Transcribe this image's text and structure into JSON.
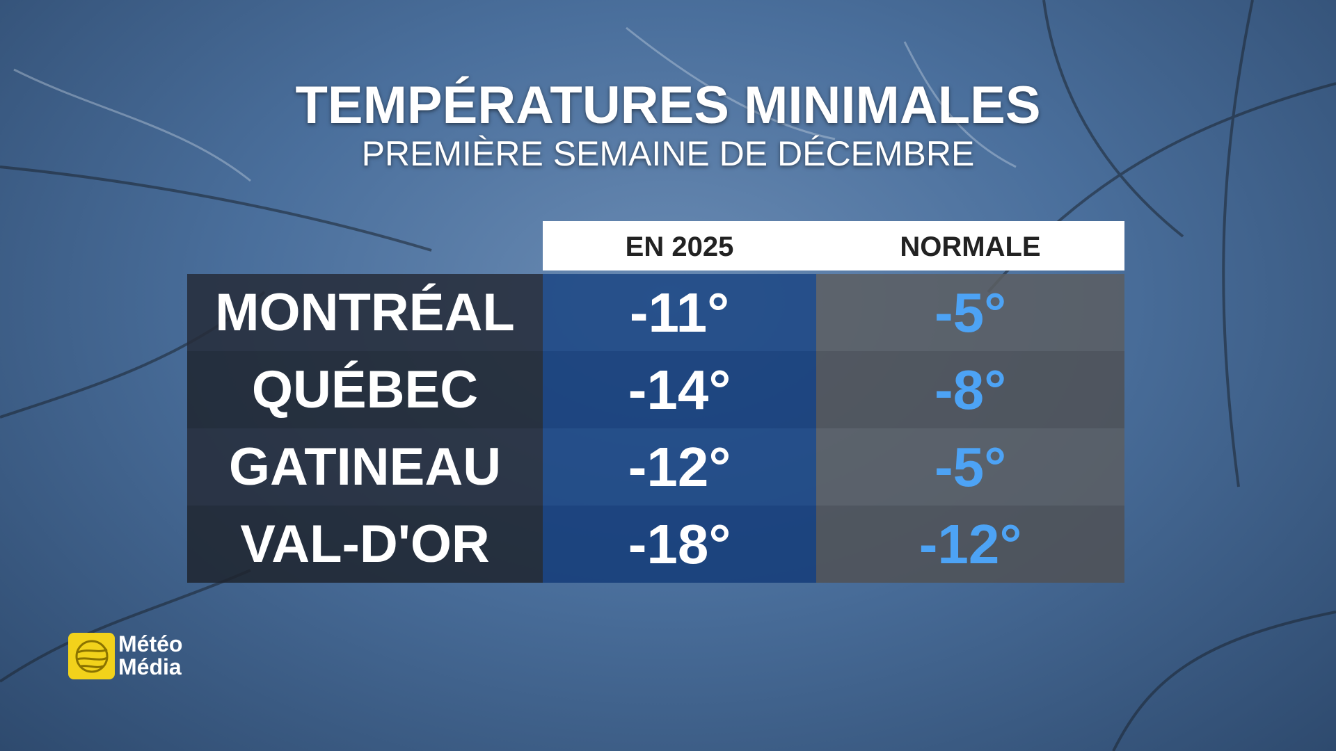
{
  "header": {
    "title": "TEMPÉRATURES MINIMALES",
    "subtitle": "PREMIÈRE SEMAINE DE DÉCEMBRE"
  },
  "table": {
    "columns": [
      "EN 2025",
      "NORMALE"
    ],
    "rows": [
      [
        "MONTRÉAL",
        "-11°",
        "-5°"
      ],
      [
        "QUÉBEC",
        "-14°",
        "-8°"
      ],
      [
        "GATINEAU",
        "-12°",
        "-5°"
      ],
      [
        "VAL-D'OR",
        "-18°",
        "-12°"
      ]
    ]
  },
  "logo": {
    "line1": "Météo",
    "line2": "Média"
  }
}
